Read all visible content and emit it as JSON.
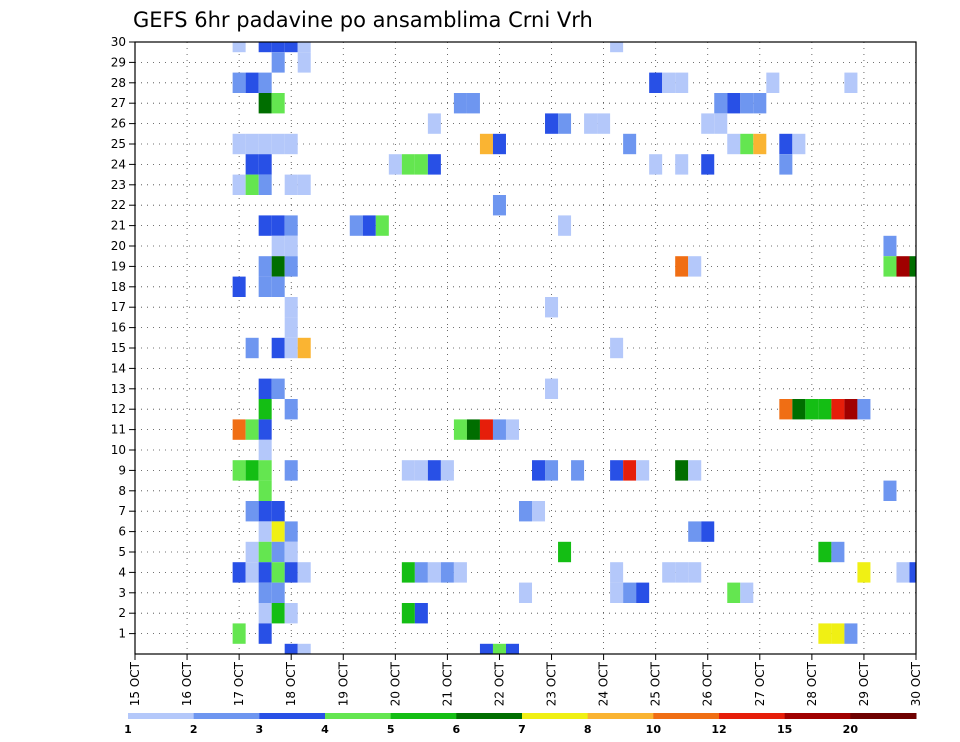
{
  "chart_data": {
    "type": "heatmap",
    "title": "GEFS 6hr padavine po ansamblima Crni Vrh",
    "xlabel": "",
    "ylabel": "",
    "x_ticks": [
      "15 OCT",
      "16 OCT",
      "17 OCT",
      "18 OCT",
      "19 OCT",
      "20 OCT",
      "21 OCT",
      "22 OCT",
      "23 OCT",
      "24 OCT",
      "25 OCT",
      "26 OCT",
      "27 OCT",
      "28 OCT",
      "29 OCT",
      "30 OCT"
    ],
    "y_ticks": [
      1,
      2,
      3,
      4,
      5,
      6,
      7,
      8,
      9,
      10,
      11,
      12,
      13,
      14,
      15,
      16,
      17,
      18,
      19,
      20,
      21,
      22,
      23,
      24,
      25,
      26,
      27,
      28,
      29,
      30
    ],
    "x_unit": "6-hour step",
    "xlim": [
      0,
      60
    ],
    "ylim": [
      0,
      30
    ],
    "grid": "dotted",
    "colorbar": {
      "labels": [
        "1",
        "2",
        "3",
        "4",
        "5",
        "6",
        "7",
        "8",
        "10",
        "12",
        "15",
        "20"
      ],
      "colors": [
        "#b4c8fa",
        "#6e96f0",
        "#2850e6",
        "#64e650",
        "#14be14",
        "#006e00",
        "#f0f014",
        "#fab432",
        "#f06e14",
        "#e61e0a",
        "#a00000",
        "#6e0000"
      ]
    },
    "cells": [
      [
        8,
        30,
        1
      ],
      [
        10,
        30,
        3
      ],
      [
        11,
        30,
        3
      ],
      [
        12,
        30,
        3
      ],
      [
        13,
        30,
        1
      ],
      [
        37,
        30,
        1
      ],
      [
        11,
        29,
        2
      ],
      [
        13,
        29,
        1
      ],
      [
        8,
        28,
        2
      ],
      [
        9,
        28,
        3
      ],
      [
        10,
        28,
        2
      ],
      [
        40,
        28,
        3
      ],
      [
        41,
        28,
        1
      ],
      [
        42,
        28,
        1
      ],
      [
        49,
        28,
        1
      ],
      [
        55,
        28,
        1
      ],
      [
        10,
        27,
        6
      ],
      [
        11,
        27,
        4
      ],
      [
        25,
        27,
        2
      ],
      [
        26,
        27,
        2
      ],
      [
        45,
        27,
        2
      ],
      [
        46,
        27,
        3
      ],
      [
        47,
        27,
        2
      ],
      [
        48,
        27,
        2
      ],
      [
        23,
        26,
        1
      ],
      [
        32,
        26,
        3
      ],
      [
        33,
        26,
        2
      ],
      [
        35,
        26,
        1
      ],
      [
        36,
        26,
        1
      ],
      [
        44,
        26,
        1
      ],
      [
        45,
        26,
        1
      ],
      [
        8,
        25,
        1
      ],
      [
        9,
        25,
        1
      ],
      [
        10,
        25,
        1
      ],
      [
        11,
        25,
        1
      ],
      [
        12,
        25,
        1
      ],
      [
        27,
        25,
        8
      ],
      [
        28,
        25,
        3
      ],
      [
        38,
        25,
        2
      ],
      [
        46,
        25,
        1
      ],
      [
        47,
        25,
        4
      ],
      [
        48,
        25,
        8
      ],
      [
        50,
        25,
        3
      ],
      [
        51,
        25,
        1
      ],
      [
        9,
        24,
        3
      ],
      [
        10,
        24,
        3
      ],
      [
        20,
        24,
        1
      ],
      [
        21,
        24,
        4
      ],
      [
        22,
        24,
        4
      ],
      [
        23,
        24,
        3
      ],
      [
        40,
        24,
        1
      ],
      [
        42,
        24,
        1
      ],
      [
        44,
        24,
        3
      ],
      [
        50,
        24,
        2
      ],
      [
        8,
        23,
        1
      ],
      [
        9,
        23,
        4
      ],
      [
        10,
        23,
        2
      ],
      [
        12,
        23,
        1
      ],
      [
        13,
        23,
        1
      ],
      [
        28,
        22,
        2
      ],
      [
        10,
        21,
        3
      ],
      [
        11,
        21,
        3
      ],
      [
        12,
        21,
        2
      ],
      [
        17,
        21,
        2
      ],
      [
        18,
        21,
        3
      ],
      [
        19,
        21,
        4
      ],
      [
        33,
        21,
        1
      ],
      [
        11,
        20,
        1
      ],
      [
        12,
        20,
        1
      ],
      [
        58,
        20,
        2
      ],
      [
        10,
        19,
        2
      ],
      [
        11,
        19,
        6
      ],
      [
        12,
        19,
        2
      ],
      [
        42,
        19,
        9
      ],
      [
        43,
        19,
        1
      ],
      [
        58,
        19,
        4
      ],
      [
        59,
        19,
        11
      ],
      [
        60,
        19,
        6
      ],
      [
        8,
        18,
        3
      ],
      [
        10,
        18,
        2
      ],
      [
        11,
        18,
        2
      ],
      [
        12,
        17,
        1
      ],
      [
        32,
        17,
        1
      ],
      [
        12,
        16,
        1
      ],
      [
        9,
        15,
        2
      ],
      [
        11,
        15,
        3
      ],
      [
        12,
        15,
        1
      ],
      [
        13,
        15,
        8
      ],
      [
        37,
        15,
        1
      ],
      [
        10,
        13,
        3
      ],
      [
        11,
        13,
        2
      ],
      [
        32,
        13,
        1
      ],
      [
        10,
        12,
        5
      ],
      [
        12,
        12,
        2
      ],
      [
        50,
        12,
        9
      ],
      [
        51,
        12,
        6
      ],
      [
        52,
        12,
        5
      ],
      [
        53,
        12,
        5
      ],
      [
        54,
        12,
        10
      ],
      [
        55,
        12,
        11
      ],
      [
        56,
        12,
        2
      ],
      [
        8,
        11,
        9
      ],
      [
        9,
        11,
        4
      ],
      [
        10,
        11,
        3
      ],
      [
        25,
        11,
        4
      ],
      [
        26,
        11,
        6
      ],
      [
        27,
        11,
        10
      ],
      [
        28,
        11,
        2
      ],
      [
        29,
        11,
        1
      ],
      [
        10,
        10,
        1
      ],
      [
        8,
        9,
        4
      ],
      [
        9,
        9,
        5
      ],
      [
        10,
        9,
        4
      ],
      [
        12,
        9,
        2
      ],
      [
        21,
        9,
        1
      ],
      [
        22,
        9,
        1
      ],
      [
        23,
        9,
        3
      ],
      [
        24,
        9,
        1
      ],
      [
        31,
        9,
        3
      ],
      [
        32,
        9,
        2
      ],
      [
        34,
        9,
        2
      ],
      [
        37,
        9,
        3
      ],
      [
        38,
        9,
        10
      ],
      [
        39,
        9,
        1
      ],
      [
        42,
        9,
        6
      ],
      [
        43,
        9,
        1
      ],
      [
        10,
        8,
        4
      ],
      [
        58,
        8,
        2
      ],
      [
        9,
        7,
        2
      ],
      [
        10,
        7,
        3
      ],
      [
        11,
        7,
        3
      ],
      [
        30,
        7,
        2
      ],
      [
        31,
        7,
        1
      ],
      [
        10,
        6,
        1
      ],
      [
        11,
        6,
        7
      ],
      [
        12,
        6,
        2
      ],
      [
        43,
        6,
        2
      ],
      [
        44,
        6,
        3
      ],
      [
        9,
        5,
        1
      ],
      [
        10,
        5,
        4
      ],
      [
        11,
        5,
        2
      ],
      [
        12,
        5,
        1
      ],
      [
        33,
        5,
        5
      ],
      [
        53,
        5,
        5
      ],
      [
        54,
        5,
        2
      ],
      [
        8,
        4,
        3
      ],
      [
        9,
        4,
        1
      ],
      [
        10,
        4,
        3
      ],
      [
        11,
        4,
        4
      ],
      [
        12,
        4,
        3
      ],
      [
        13,
        4,
        1
      ],
      [
        21,
        4,
        5
      ],
      [
        22,
        4,
        2
      ],
      [
        23,
        4,
        1
      ],
      [
        24,
        4,
        2
      ],
      [
        25,
        4,
        1
      ],
      [
        37,
        4,
        1
      ],
      [
        41,
        4,
        1
      ],
      [
        42,
        4,
        1
      ],
      [
        43,
        4,
        1
      ],
      [
        56,
        4,
        7
      ],
      [
        59,
        4,
        1
      ],
      [
        60,
        4,
        3
      ],
      [
        10,
        3,
        2
      ],
      [
        11,
        3,
        2
      ],
      [
        30,
        3,
        1
      ],
      [
        37,
        3,
        1
      ],
      [
        38,
        3,
        2
      ],
      [
        39,
        3,
        3
      ],
      [
        46,
        3,
        4
      ],
      [
        47,
        3,
        1
      ],
      [
        10,
        2,
        1
      ],
      [
        11,
        2,
        5
      ],
      [
        12,
        2,
        1
      ],
      [
        21,
        2,
        5
      ],
      [
        22,
        2,
        3
      ],
      [
        8,
        1,
        4
      ],
      [
        10,
        1,
        3
      ],
      [
        53,
        1,
        7
      ],
      [
        54,
        1,
        7
      ],
      [
        55,
        1,
        2
      ],
      [
        12,
        0,
        3
      ],
      [
        13,
        0,
        1
      ],
      [
        27,
        0,
        3
      ],
      [
        28,
        0,
        4
      ],
      [
        29,
        0,
        3
      ]
    ]
  }
}
